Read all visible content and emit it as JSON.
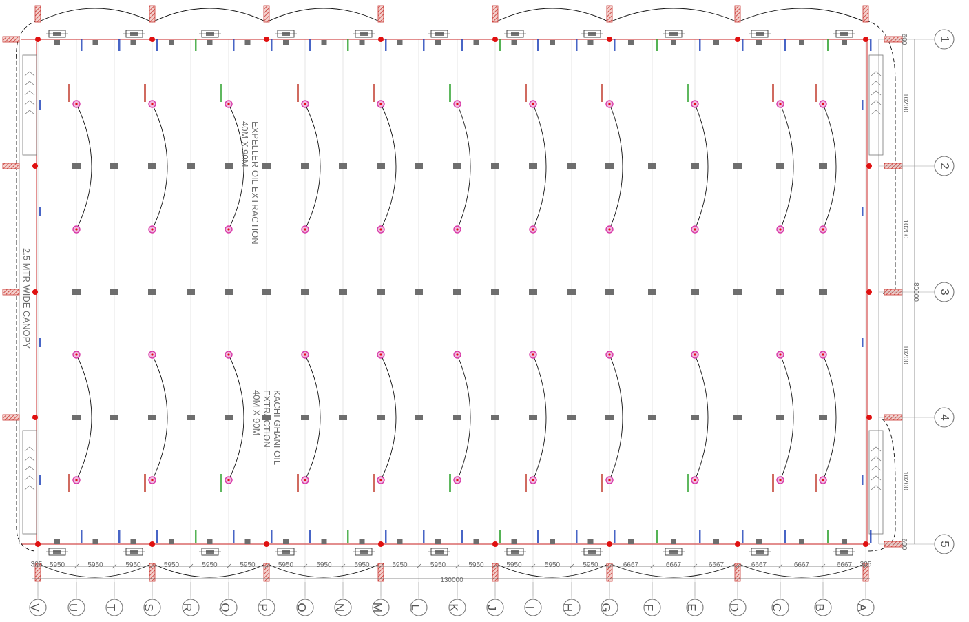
{
  "title_labels": {
    "upper_hall": [
      "EXPELLER OIL EXTRACTION",
      "40M X 90M"
    ],
    "lower_hall": [
      "KACHI GHANI OIL",
      "EXTRACTION",
      "40M X 90M"
    ],
    "canopy": "2.5 MTR WIDE CANOPY"
  },
  "column_grid_letters": [
    "V",
    "U",
    "T",
    "S",
    "R",
    "Q",
    "P",
    "O",
    "N",
    "M",
    "L",
    "K",
    "J",
    "I",
    "H",
    "G",
    "F",
    "E",
    "D",
    "C",
    "B",
    "A"
  ],
  "row_grid_numbers": [
    "1",
    "2",
    "3",
    "4",
    "5"
  ],
  "bay_dimensions": [
    "5950",
    "5950",
    "5950",
    "5950",
    "5950",
    "5950",
    "5950",
    "5950",
    "5950",
    "5950",
    "5950",
    "5950",
    "5950",
    "5950",
    "5950",
    "6667",
    "6667",
    "6667",
    "6667",
    "6667",
    "6667"
  ],
  "edge_dimension": "305",
  "overall_length": "130000",
  "row_dimensions": [
    "10200",
    "10200",
    "10200",
    "10200"
  ],
  "overall_width": "80000",
  "end_offsets": [
    "600",
    "600"
  ],
  "colors": {
    "wall_line": "#d24b4b",
    "column_red": "#e01010",
    "pier_gray": "#6e6e6e",
    "fixture_pink": "#d83aa8",
    "hatch_red": "#c8322e",
    "circuit_line": "#111111",
    "tag_blue": "#1a3fb8",
    "tag_green": "#2aa02a"
  }
}
